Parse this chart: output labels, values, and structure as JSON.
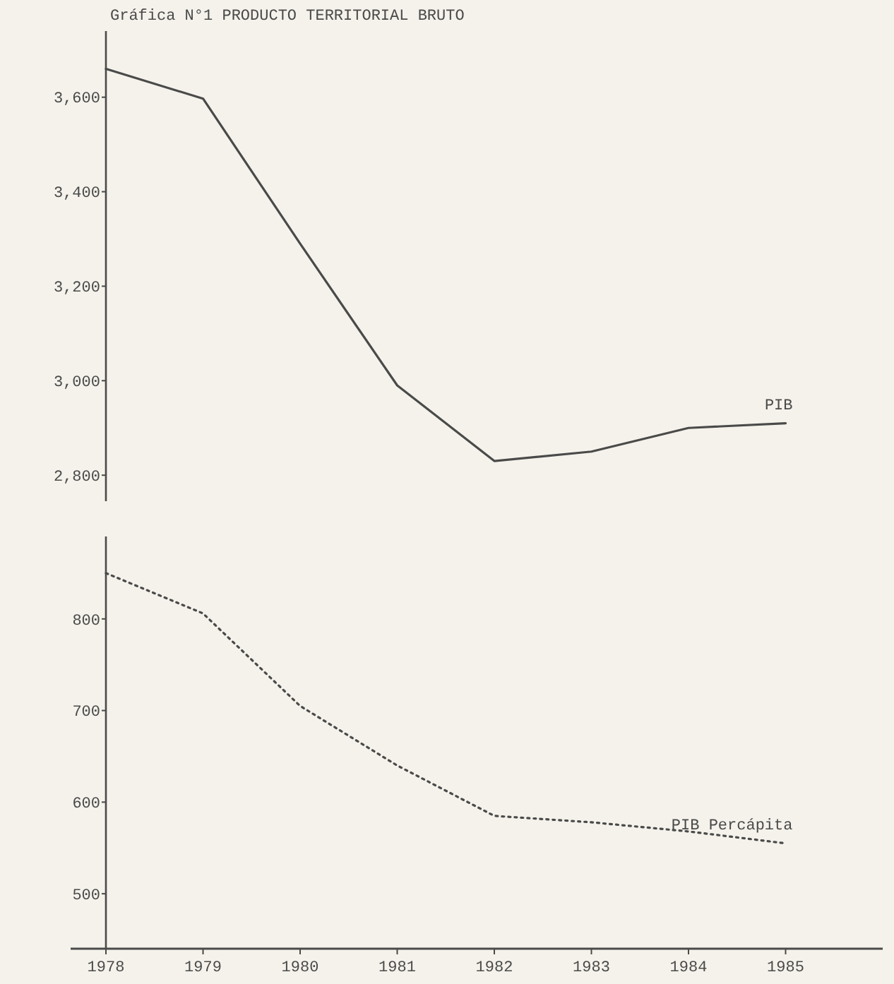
{
  "chart_data": [
    {
      "type": "line",
      "title": "Gráfica N°1 PRODUCTO TERRITORIAL BRUTO",
      "categories": [
        null,
        null,
        null,
        null,
        null,
        null,
        null,
        null
      ],
      "ylim": [
        2745,
        3740
      ],
      "yticks": [
        {
          "value": 2800,
          "label": "2,800"
        },
        {
          "value": 3000,
          "label": "3,000"
        },
        {
          "value": 3200,
          "label": "3,200"
        },
        {
          "value": 3400,
          "label": "3,400"
        },
        {
          "value": 3600,
          "label": "3,600"
        }
      ],
      "tick_labels": "y",
      "line_style": "solid",
      "series": [
        {
          "name": "PIB",
          "color": "#4a4a4a",
          "values": [
            3660,
            3597,
            3290,
            2990,
            2830,
            2850,
            2900,
            2910
          ]
        }
      ]
    },
    {
      "type": "line",
      "x": [
        1978,
        1979,
        1980,
        1981,
        1982,
        1983,
        1984,
        1985
      ],
      "xlim": [
        1978,
        1986
      ],
      "xticks": [
        1978,
        1979,
        1980,
        1981,
        1982,
        1983,
        1984,
        1985
      ],
      "ylim": [
        440,
        890
      ],
      "yticks": [
        500,
        600,
        700,
        800
      ],
      "line_style": "dotted",
      "series": [
        {
          "name": "PIB Percápita",
          "color": "#4a4a4a",
          "values": [
            850,
            806,
            705,
            640,
            585,
            578,
            568,
            555
          ]
        }
      ]
    }
  ]
}
